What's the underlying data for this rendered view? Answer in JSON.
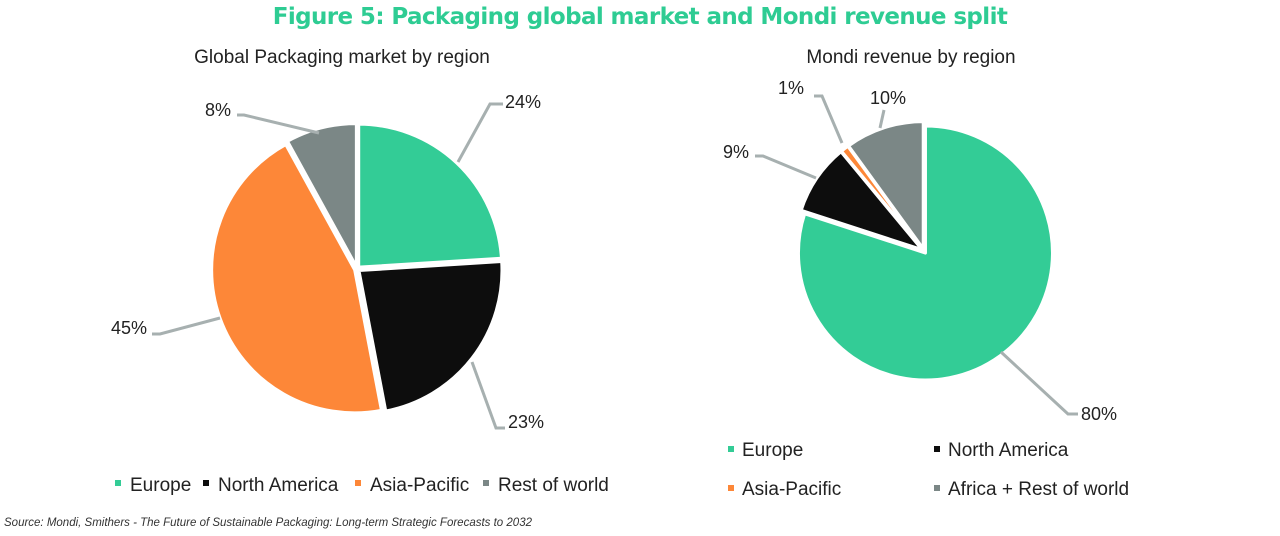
{
  "title": "Figure 5: Packaging global market and Mondi revenue split",
  "source": "Source: Mondi, Smithers - The Future of Sustainable Packaging: Long-term Strategic Forecasts to 2032",
  "colors": {
    "title": "#2ecc93",
    "europe": "#33cc96",
    "north_america": "#0d0d0d",
    "asia_pacific": "#fd8738",
    "rest_of_world": "#7b8786",
    "leader": "#a7b0b0"
  },
  "chart_data": [
    {
      "type": "pie",
      "title": "Global Packaging market by region",
      "categories": [
        "Europe",
        "North America",
        "Asia-Pacific",
        "Rest of world"
      ],
      "values": [
        24,
        23,
        45,
        8
      ],
      "data_labels": [
        "24%",
        "23%",
        "45%",
        "8%"
      ],
      "legend": {
        "placement": "bottom",
        "labels": [
          "Europe",
          "North America",
          "Asia-Pacific",
          "Rest of world"
        ]
      }
    },
    {
      "type": "pie",
      "title": "Mondi revenue by region",
      "categories": [
        "Europe",
        "North America",
        "Asia-Pacific",
        "Africa + Rest of world"
      ],
      "values": [
        80,
        9,
        1,
        10
      ],
      "data_labels": [
        "80%",
        "9%",
        "1%",
        "10%"
      ],
      "legend": {
        "placement": "bottom",
        "labels": [
          "Europe",
          "North America",
          "Asia-Pacific",
          "Africa + Rest of world"
        ]
      }
    }
  ]
}
